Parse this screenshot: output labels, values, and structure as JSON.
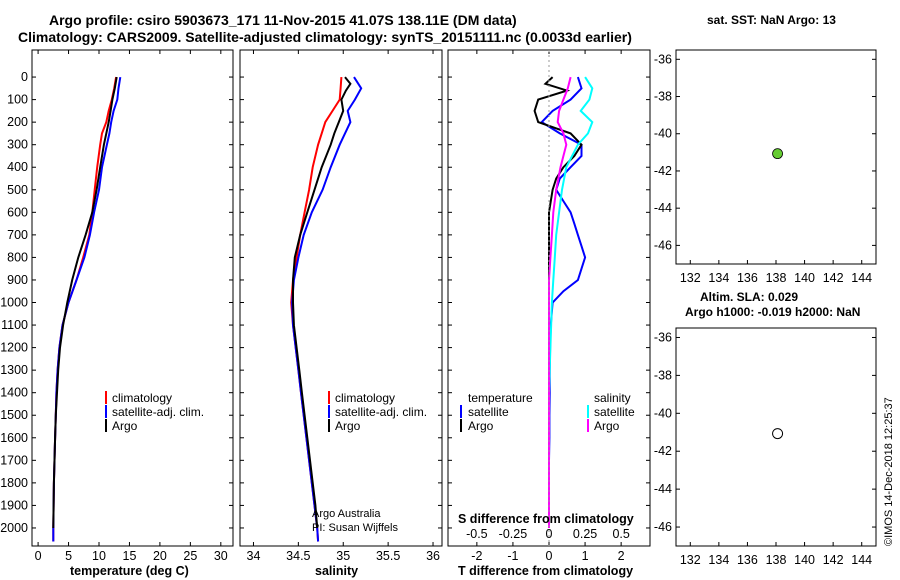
{
  "header": {
    "line1": "Argo profile: csiro 5903673_171 11-Nov-2015 41.07S 138.11E (DM data)",
    "line2": "Climatology: CARS2009. Satellite-adjusted climatology: synTS_20151111.nc (0.0033d earlier)"
  },
  "colors": {
    "climatology": "#ff0000",
    "satellite": "#0000ff",
    "argo": "#000000",
    "sat_salinity": "#00ffff",
    "argo_salinity": "#ff00ff",
    "land": "#f9c59a",
    "sea": "#2f9e2f",
    "float": "#66cc33"
  },
  "depth_axis": {
    "ticks": [
      "0",
      "100",
      "200",
      "300",
      "400",
      "500",
      "600",
      "700",
      "800",
      "900",
      "1000",
      "1100",
      "1200",
      "1300",
      "1400",
      "1500",
      "1600",
      "1700",
      "1800",
      "1900",
      "2000"
    ],
    "range": [
      -120,
      2080
    ]
  },
  "chart_data": [
    {
      "type": "line",
      "name": "temperature-panel",
      "xlabel": "temperature (deg C)",
      "xlim": [
        -1,
        32
      ],
      "x_ticks": [
        "0",
        "5",
        "10",
        "15",
        "20",
        "25",
        "30"
      ],
      "legend": [
        "climatology",
        "satellite-adj. clim.",
        "Argo"
      ],
      "series": [
        {
          "name": "climatology",
          "depth": [
            0,
            50,
            100,
            150,
            200,
            250,
            300,
            400,
            500,
            600,
            700,
            800,
            900,
            1000,
            1100,
            1200,
            1300,
            1400,
            1500,
            1600,
            1700,
            1800,
            1900,
            2000,
            2060
          ],
          "values": [
            12.8,
            12.5,
            12.1,
            11.6,
            11.2,
            10.5,
            10.2,
            9.7,
            9.3,
            8.9,
            8.4,
            7.4,
            6.3,
            5.0,
            4.0,
            3.5,
            3.2,
            3.0,
            2.9,
            2.8,
            2.7,
            2.6,
            2.55,
            2.5,
            2.5
          ]
        },
        {
          "name": "satellite-adj. clim.",
          "depth": [
            0,
            50,
            100,
            150,
            200,
            250,
            300,
            400,
            500,
            600,
            700,
            800,
            900,
            1000,
            1100,
            1200,
            1300,
            1400,
            1500,
            1600,
            1700,
            1800,
            1900,
            2000,
            2060
          ],
          "values": [
            13.5,
            13.2,
            13.0,
            12.4,
            12.0,
            11.7,
            11.3,
            10.5,
            10.0,
            9.2,
            8.5,
            7.6,
            6.3,
            5.0,
            4.0,
            3.5,
            3.2,
            3.0,
            2.9,
            2.8,
            2.7,
            2.6,
            2.55,
            2.5,
            2.5
          ]
        },
        {
          "name": "Argo",
          "depth": [
            0,
            50,
            100,
            150,
            200,
            250,
            300,
            400,
            500,
            600,
            700,
            800,
            900,
            1000,
            1100,
            1200,
            1300,
            1400,
            1500,
            1600,
            1700,
            1800,
            1900,
            2000
          ],
          "values": [
            12.9,
            12.6,
            12.2,
            11.9,
            11.6,
            11.2,
            10.8,
            10.2,
            9.6,
            8.9,
            7.8,
            6.6,
            5.6,
            4.8,
            4.1,
            3.6,
            3.3,
            3.1,
            2.9,
            2.8,
            2.7,
            2.6,
            2.55,
            2.5
          ]
        }
      ]
    },
    {
      "type": "line",
      "name": "salinity-panel",
      "xlabel": "salinity",
      "xlim": [
        33.85,
        36.1
      ],
      "x_ticks": [
        "34",
        "34.5",
        "35",
        "35.5",
        "36"
      ],
      "legend": [
        "climatology",
        "satellite-adj. clim.",
        "Argo"
      ],
      "series": [
        {
          "name": "climatology",
          "depth": [
            0,
            50,
            100,
            150,
            200,
            250,
            300,
            400,
            500,
            600,
            700,
            800,
            900,
            1000,
            1100,
            1200,
            1300,
            1400,
            1500,
            1600,
            1700,
            1800,
            1900,
            2000,
            2060
          ],
          "values": [
            34.98,
            34.97,
            34.96,
            34.88,
            34.8,
            34.76,
            34.72,
            34.66,
            34.62,
            34.57,
            34.52,
            34.48,
            34.44,
            34.42,
            34.44,
            34.47,
            34.5,
            34.53,
            34.56,
            34.59,
            34.62,
            34.65,
            34.68,
            34.71,
            34.72
          ]
        },
        {
          "name": "satellite-adj. clim.",
          "depth": [
            0,
            50,
            100,
            150,
            200,
            250,
            300,
            400,
            500,
            600,
            700,
            800,
            900,
            1000,
            1100,
            1200,
            1300,
            1400,
            1500,
            1600,
            1700,
            1800,
            1900,
            2000,
            2060
          ],
          "values": [
            35.12,
            35.2,
            35.13,
            35.05,
            35.08,
            35.02,
            34.96,
            34.86,
            34.77,
            34.65,
            34.56,
            34.5,
            34.45,
            34.43,
            34.44,
            34.47,
            34.5,
            34.53,
            34.56,
            34.59,
            34.62,
            34.65,
            34.68,
            34.71,
            34.72
          ]
        },
        {
          "name": "Argo",
          "depth": [
            0,
            30,
            60,
            100,
            150,
            200,
            250,
            300,
            400,
            500,
            600,
            700,
            800,
            900,
            1000,
            1100,
            1200,
            1300,
            1400,
            1500,
            1600,
            1700,
            1800,
            1900,
            2000
          ],
          "values": [
            35.02,
            35.08,
            35.03,
            34.98,
            35.0,
            34.95,
            34.9,
            34.86,
            34.76,
            34.68,
            34.6,
            34.52,
            34.46,
            34.44,
            34.44,
            34.45,
            34.48,
            34.51,
            34.54,
            34.57,
            34.6,
            34.63,
            34.66,
            34.69,
            34.71
          ]
        }
      ]
    },
    {
      "type": "line",
      "name": "difference-panel",
      "xlabel": "T difference from climatology",
      "xlabel_top": "S difference from climatology",
      "xlim": [
        -2.8,
        2.8
      ],
      "x_ticks": [
        "-2",
        "-1",
        "0",
        "1",
        "2"
      ],
      "s_ticks": [
        "-0.5",
        "-0.25",
        "0",
        "0.25",
        "0.5"
      ],
      "legend_left_title": "temperature",
      "legend_right_title": "salinity",
      "legend": [
        "satellite",
        "Argo"
      ],
      "series": [
        {
          "name": "T satellite",
          "depth": [
            0,
            50,
            100,
            150,
            200,
            250,
            300,
            350,
            400,
            450,
            500,
            550,
            600,
            650,
            700,
            750,
            800,
            850,
            900,
            950,
            1000,
            1100,
            1200,
            1300,
            1400,
            1500,
            1600,
            1700,
            1800,
            1900,
            2000
          ],
          "values": [
            0.8,
            0.9,
            0.6,
            0.1,
            -0.2,
            0.3,
            0.9,
            0.9,
            0.6,
            0.3,
            0.2,
            0.4,
            0.6,
            0.7,
            0.8,
            0.9,
            1.0,
            0.9,
            0.8,
            0.4,
            0.1,
            0.05,
            0.03,
            0.02,
            0.02,
            0.01,
            0.01,
            0.0,
            0.0,
            0.0,
            0.0
          ]
        },
        {
          "name": "T Argo",
          "depth": [
            0,
            30,
            60,
            100,
            150,
            200,
            250,
            300,
            350,
            400,
            450,
            500,
            600,
            700,
            800,
            900,
            1000,
            1100,
            1200,
            1300,
            1400,
            1500,
            1600,
            1700,
            1800,
            1900,
            2000
          ],
          "values": [
            0.1,
            -0.1,
            0.5,
            -0.3,
            -0.4,
            -0.3,
            0.6,
            0.9,
            0.7,
            0.4,
            0.2,
            0.1,
            0.0,
            0.0,
            0.0,
            0.0,
            0.0,
            0.0,
            0.0,
            0.0,
            0.0,
            0.0,
            0.0,
            0.0,
            0.0,
            0.0,
            0.0
          ]
        },
        {
          "name": "S satellite",
          "depth": [
            0,
            50,
            100,
            150,
            200,
            250,
            300,
            400,
            500,
            600,
            700,
            800,
            900,
            1000,
            1200,
            1400,
            1600,
            1800,
            2000
          ],
          "values": [
            0.25,
            0.3,
            0.28,
            0.22,
            0.3,
            0.27,
            0.2,
            0.12,
            0.09,
            0.07,
            0.05,
            0.04,
            0.03,
            0.02,
            0.01,
            0.0,
            0.0,
            0.0,
            0.0
          ]
        },
        {
          "name": "S Argo",
          "depth": [
            0,
            50,
            100,
            150,
            200,
            250,
            300,
            400,
            500,
            600,
            700,
            800,
            900,
            1000,
            1200,
            1400,
            1600,
            1800,
            2000
          ],
          "values": [
            0.15,
            0.13,
            0.1,
            0.07,
            0.06,
            0.1,
            0.12,
            0.08,
            0.05,
            0.03,
            0.02,
            0.01,
            0.0,
            0.0,
            0.0,
            0.0,
            0.0,
            0.0,
            0.0
          ]
        }
      ]
    }
  ],
  "map_top": {
    "title": "sat. SST: NaN Argo: 13",
    "lat_ticks": [
      "-36",
      "-38",
      "-40",
      "-42",
      "-44",
      "-46"
    ],
    "lon_ticks": [
      "132",
      "134",
      "136",
      "138",
      "140",
      "142",
      "144"
    ],
    "float_lon": 138.11,
    "float_lat": -41.07
  },
  "map_bottom": {
    "title1": "Altim. SLA: 0.029",
    "title2": "Argo h1000: -0.019 h2000: NaN",
    "lat_ticks": [
      "-36",
      "-38",
      "-40",
      "-42",
      "-44",
      "-46"
    ],
    "lon_ticks": [
      "132",
      "134",
      "136",
      "138",
      "140",
      "142",
      "144"
    ],
    "float_lon": 138.11,
    "float_lat": -41.07
  },
  "credits": {
    "institution": "Argo Australia",
    "pi": "PI: Susan Wijffels",
    "watermark": "©IMOS 14-Dec-2018 12:25:37"
  }
}
